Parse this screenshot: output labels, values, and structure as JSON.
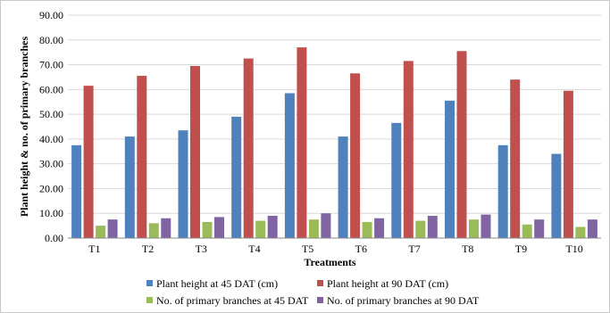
{
  "chart_data": {
    "type": "bar",
    "xlabel": "Treatments",
    "ylabel": "Plant height & no. of primary branches",
    "ylim": [
      0,
      90
    ],
    "yticks": [
      "0.00",
      "10.00",
      "20.00",
      "30.00",
      "40.00",
      "50.00",
      "60.00",
      "70.00",
      "80.00",
      "90.00"
    ],
    "categories": [
      "T1",
      "T2",
      "T3",
      "T4",
      "T5",
      "T6",
      "T7",
      "T8",
      "T9",
      "T10"
    ],
    "grid": true,
    "legend_position": "bottom",
    "series": [
      {
        "name": "Plant height at 45 DAT (cm)",
        "color": "#4f81bd",
        "values": [
          37.5,
          41.0,
          43.5,
          49.0,
          58.5,
          41.0,
          46.5,
          55.5,
          37.5,
          34.0
        ]
      },
      {
        "name": "Plant height at 90 DAT (cm)",
        "color": "#c0504d",
        "values": [
          61.5,
          65.5,
          69.5,
          72.5,
          77.0,
          66.5,
          71.5,
          75.5,
          64.0,
          59.5
        ]
      },
      {
        "name": "No. of primary branches at 45 DAT",
        "color": "#9bbb59",
        "values": [
          5.0,
          6.0,
          6.5,
          7.0,
          7.5,
          6.5,
          7.0,
          7.5,
          5.5,
          4.5
        ]
      },
      {
        "name": "No. of primary branches at 90 DAT",
        "color": "#8064a2",
        "values": [
          7.5,
          8.0,
          8.5,
          9.0,
          10.0,
          8.0,
          9.0,
          9.5,
          7.5,
          7.5
        ]
      }
    ]
  }
}
